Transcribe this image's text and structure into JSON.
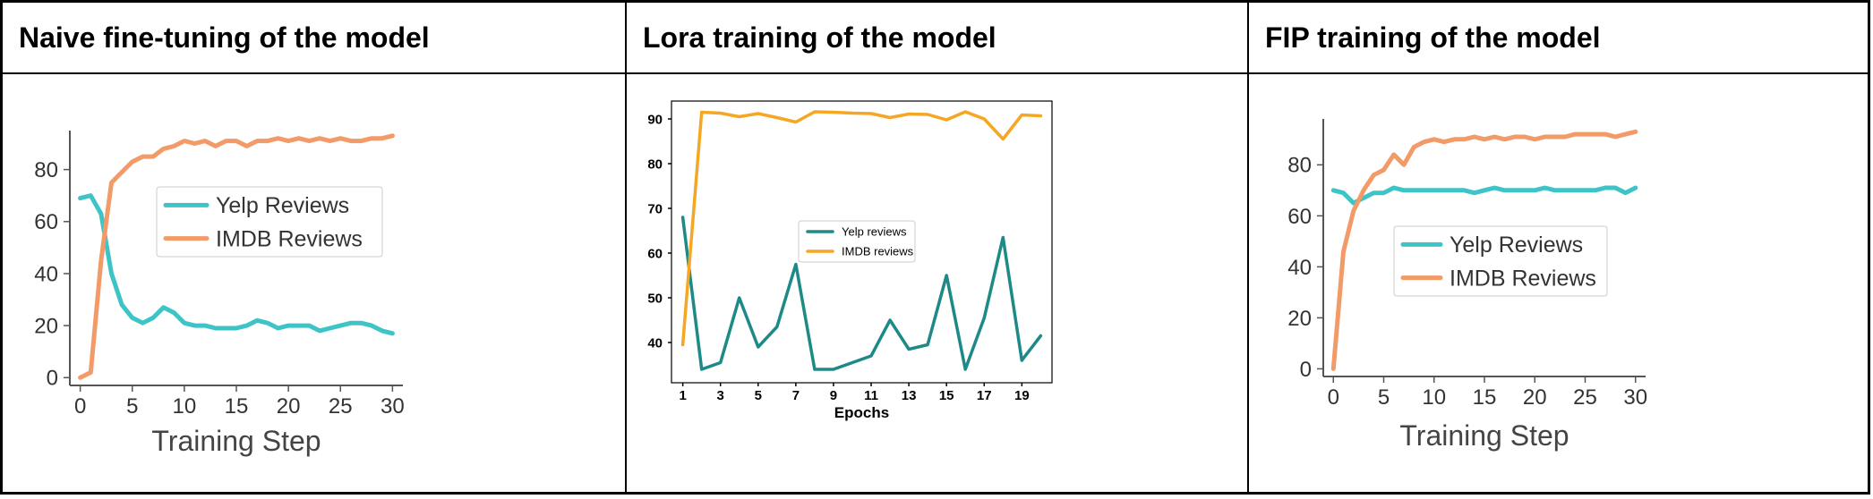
{
  "headers": [
    "Naive fine-tuning of the model",
    "Lora training of the model",
    "FIP training of the model"
  ],
  "colors": {
    "teal_bright": "#3ec3c7",
    "orange_soft": "#f29a68",
    "teal_dark": "#1e8a88",
    "orange_gold": "#f5a623",
    "axis": "#555555"
  },
  "chart_data": [
    {
      "type": "line",
      "title": "",
      "xlabel": "Training Step",
      "ylabel": "",
      "xlim": [
        -1,
        31
      ],
      "ylim": [
        -3,
        95
      ],
      "xticks": [
        0,
        5,
        10,
        15,
        20,
        25,
        30
      ],
      "yticks": [
        0,
        20,
        40,
        60,
        80
      ],
      "legend": "center-right",
      "x": [
        0,
        1,
        2,
        3,
        4,
        5,
        6,
        7,
        8,
        9,
        10,
        11,
        12,
        13,
        14,
        15,
        16,
        17,
        18,
        19,
        20,
        21,
        22,
        23,
        24,
        25,
        26,
        27,
        28,
        29,
        30
      ],
      "series": [
        {
          "name": "Yelp Reviews",
          "color": "#3ec3c7",
          "values": [
            69,
            70,
            63,
            40,
            28,
            23,
            21,
            23,
            27,
            25,
            21,
            20,
            20,
            19,
            19,
            19,
            20,
            22,
            21,
            19,
            20,
            20,
            20,
            18,
            19,
            20,
            21,
            21,
            20,
            18,
            17
          ]
        },
        {
          "name": "IMDB Reviews",
          "color": "#f29a68",
          "values": [
            0,
            2,
            45,
            75,
            79,
            83,
            85,
            85,
            88,
            89,
            91,
            90,
            91,
            89,
            91,
            91,
            89,
            91,
            91,
            92,
            91,
            92,
            91,
            92,
            91,
            92,
            91,
            91,
            92,
            92,
            93
          ]
        }
      ]
    },
    {
      "type": "line",
      "title": "",
      "xlabel": "Epochs",
      "ylabel": "",
      "xlim": [
        0.4,
        20.6
      ],
      "ylim": [
        31,
        94
      ],
      "xticks": [
        1,
        3,
        5,
        7,
        9,
        11,
        13,
        15,
        17,
        19
      ],
      "yticks": [
        40,
        50,
        60,
        70,
        80,
        90
      ],
      "legend": "center",
      "x": [
        1,
        2,
        3,
        4,
        5,
        6,
        7,
        8,
        9,
        10,
        11,
        12,
        13,
        14,
        15,
        16,
        17,
        18,
        19,
        20
      ],
      "series": [
        {
          "name": "Yelp reviews",
          "color": "#1e8a88",
          "values": [
            68,
            34,
            35.5,
            50,
            39,
            43.5,
            57.5,
            34,
            34,
            35.5,
            37,
            45,
            38.5,
            39.5,
            55,
            34,
            45.5,
            63.5,
            36,
            41.5
          ]
        },
        {
          "name": "IMDB reviews",
          "color": "#f5a623",
          "values": [
            39.5,
            91.5,
            91.3,
            90.5,
            91.2,
            90.3,
            89.3,
            91.6,
            91.5,
            91.3,
            91.2,
            90.3,
            91.1,
            91,
            89.8,
            91.6,
            90,
            85.5,
            90.9,
            90.7
          ]
        }
      ]
    },
    {
      "type": "line",
      "title": "",
      "xlabel": "Training Step",
      "ylabel": "",
      "xlim": [
        -1,
        31
      ],
      "ylim": [
        -3,
        98
      ],
      "xticks": [
        0,
        5,
        10,
        15,
        20,
        25,
        30
      ],
      "yticks": [
        0,
        20,
        40,
        60,
        80
      ],
      "legend": "center",
      "x": [
        0,
        1,
        2,
        3,
        4,
        5,
        6,
        7,
        8,
        9,
        10,
        11,
        12,
        13,
        14,
        15,
        16,
        17,
        18,
        19,
        20,
        21,
        22,
        23,
        24,
        25,
        26,
        27,
        28,
        29,
        30
      ],
      "series": [
        {
          "name": "Yelp Reviews",
          "color": "#3ec3c7",
          "values": [
            70,
            69,
            65,
            67,
            69,
            69,
            71,
            70,
            70,
            70,
            70,
            70,
            70,
            70,
            69,
            70,
            71,
            70,
            70,
            70,
            70,
            71,
            70,
            70,
            70,
            70,
            70,
            71,
            71,
            69,
            71
          ]
        },
        {
          "name": "IMDB Reviews",
          "color": "#f29a68",
          "values": [
            0,
            46,
            62,
            70,
            76,
            78,
            84,
            80,
            87,
            89,
            90,
            89,
            90,
            90,
            91,
            90,
            91,
            90,
            91,
            91,
            90,
            91,
            91,
            91,
            92,
            92,
            92,
            92,
            91,
            92,
            93
          ]
        }
      ]
    }
  ]
}
